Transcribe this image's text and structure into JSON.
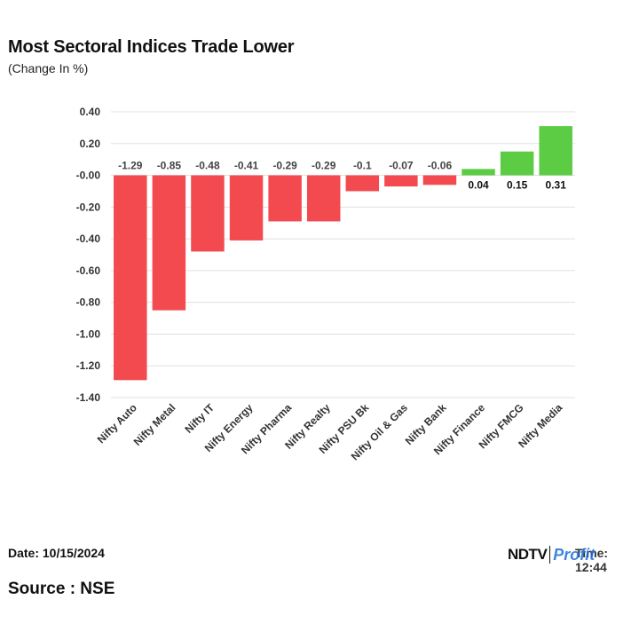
{
  "header": {
    "title": "Most Sectoral Indices Trade Lower",
    "subtitle": "(Change In %)"
  },
  "footer": {
    "date": "Date: 10/15/2024",
    "time": "Time: 12:44",
    "source": "Source : NSE",
    "logo_part1": "NDTV",
    "logo_part2": "Profit"
  },
  "colors": {
    "negative": "#f24a4f",
    "positive": "#5ccc45",
    "grid": "#e0e0e0",
    "text": "#333333"
  },
  "chart_data": {
    "type": "bar",
    "title": "Most Sectoral Indices Trade Lower",
    "ylabel": "(Change In %)",
    "xlabel": "",
    "categories": [
      "Nifty Auto",
      "Nifty Metal",
      "Nifty IT",
      "Nifty Energy",
      "Nifty Pharma",
      "Nifty Realty",
      "Nifty PSU Bk",
      "Nifty Oil & Gas",
      "Nifty Bank",
      "Nifty Finance",
      "Nifty FMCG",
      "Nifty Media"
    ],
    "values": [
      -1.29,
      -0.85,
      -0.48,
      -0.41,
      -0.29,
      -0.29,
      -0.1,
      -0.07,
      -0.06,
      0.04,
      0.15,
      0.31
    ],
    "data_labels": [
      "-1.29",
      "-0.85",
      "-0.48",
      "-0.41",
      "-0.29",
      "-0.29",
      "-0.1",
      "-0.07",
      "-0.06",
      "0.04",
      "0.15",
      "0.31"
    ],
    "yticks": [
      0.4,
      0.2,
      0.0,
      -0.2,
      -0.4,
      -0.6,
      -0.8,
      -1.0,
      -1.2,
      -1.4
    ],
    "ytick_labels": [
      "0.40",
      "0.20",
      "-0.00",
      "-0.20",
      "-0.40",
      "-0.60",
      "-0.80",
      "-1.00",
      "-1.20",
      "-1.40"
    ],
    "ylim": [
      -1.4,
      0.4
    ],
    "grid": true,
    "legend": "none"
  }
}
